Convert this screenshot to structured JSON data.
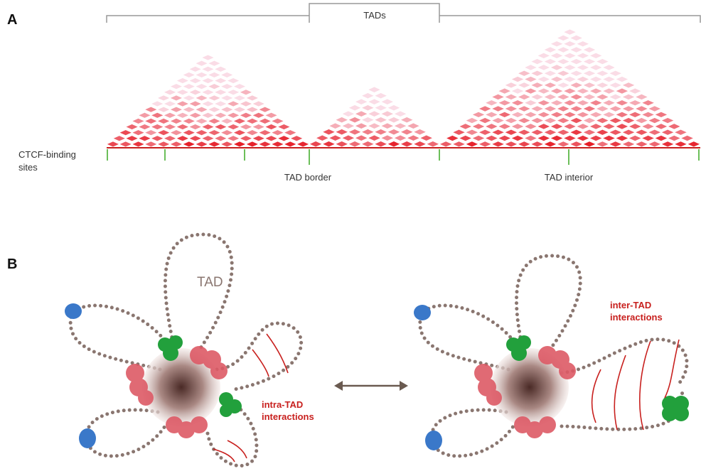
{
  "panel_a": {
    "label": "A",
    "tads_label": "TADs",
    "ctcf_label": [
      "CTCF-binding",
      "sites"
    ],
    "border_label": "TAD border",
    "interior_label": "TAD interior"
  },
  "panel_b": {
    "label": "B",
    "tad_label": "TAD",
    "intra_label": [
      "intra-TAD",
      "interactions"
    ],
    "inter_label": [
      "inter-TAD",
      "interactions"
    ]
  }
}
